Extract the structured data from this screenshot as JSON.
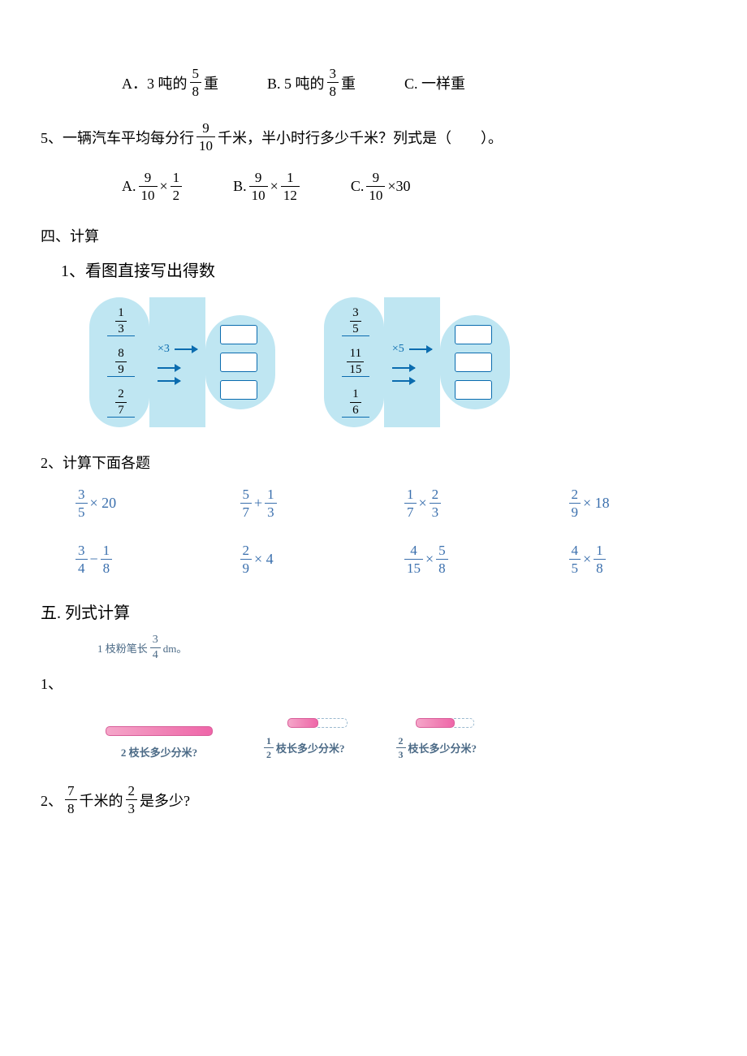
{
  "q_prev_opts": {
    "a_pre": "A．3 吨的",
    "a_frac_n": "5",
    "a_frac_d": "8",
    "a_post": "重",
    "b_pre": "B. 5 吨的",
    "b_frac_n": "3",
    "b_frac_d": "8",
    "b_post": "重",
    "c": "C. 一样重"
  },
  "q5": {
    "num": "5、",
    "text_a": "一辆汽车平均每分行",
    "frac_n": "9",
    "frac_d": "10",
    "text_b": "千米，半小时行多少千米？列式是（　　）。",
    "opts": {
      "a_lbl": "A. ",
      "a1_n": "9",
      "a1_d": "10",
      "a_op": "×",
      "a2_n": "1",
      "a2_d": "2",
      "b_lbl": "B. ",
      "b1_n": "9",
      "b1_d": "10",
      "b_op": "×",
      "b2_n": "1",
      "b2_d": "12",
      "c_lbl": "C. ",
      "c1_n": "9",
      "c1_d": "10",
      "c_op": "×30"
    }
  },
  "sec4": {
    "title": "四、计算",
    "sub1": "1、看图直接写出得数",
    "sub2": "2、计算下面各题"
  },
  "diagram": {
    "left": {
      "op": "×3",
      "f1_n": "1",
      "f1_d": "3",
      "f2_n": "8",
      "f2_d": "9",
      "f3_n": "2",
      "f3_d": "7"
    },
    "right": {
      "op": "×5",
      "f1_n": "3",
      "f1_d": "5",
      "f2_n": "11",
      "f2_d": "15",
      "f3_n": "1",
      "f3_d": "6"
    }
  },
  "calc2": [
    {
      "a_n": "3",
      "a_d": "5",
      "op": "× 20"
    },
    {
      "a_n": "5",
      "a_d": "7",
      "mid": "+",
      "b_n": "1",
      "b_d": "3"
    },
    {
      "a_n": "1",
      "a_d": "7",
      "mid": "×",
      "b_n": "2",
      "b_d": "3"
    },
    {
      "a_n": "2",
      "a_d": "9",
      "op": "× 18"
    },
    {
      "a_n": "3",
      "a_d": "4",
      "mid": "−",
      "b_n": "1",
      "b_d": "8"
    },
    {
      "a_n": "2",
      "a_d": "9",
      "op": "× 4"
    },
    {
      "a_n": "4",
      "a_d": "15",
      "mid": "×",
      "b_n": "5",
      "b_d": "8"
    },
    {
      "a_n": "4",
      "a_d": "5",
      "mid": "×",
      "b_n": "1",
      "b_d": "8"
    }
  ],
  "sec5": {
    "title": "五. 列式计算",
    "q1_num": "1、",
    "q1_intro_a": "1 枝粉笔长",
    "q1_intro_n": "3",
    "q1_intro_d": "4",
    "q1_intro_b": " dm。",
    "items": [
      {
        "pre": "2 ",
        "post": "枝长多少分米?",
        "chalk_w": 130,
        "dash_w": 0
      },
      {
        "frac_n": "1",
        "frac_d": "2",
        "post": "枝长多少分米?",
        "chalk_w": 36,
        "dash_w": 36
      },
      {
        "frac_n": "2",
        "frac_d": "3",
        "post": "枝长多少分米?",
        "chalk_w": 46,
        "dash_w": 24
      }
    ],
    "q2_num": "2、 ",
    "q2_a_n": "7",
    "q2_a_d": "8",
    "q2_mid": " 千米的",
    "q2_b_n": "2",
    "q2_b_d": "3",
    "q2_end": " 是多少?"
  },
  "style": {
    "diagram_bg": "#bfe6f2",
    "diagram_border": "#0b6caf",
    "calc_color": "#3a6fad",
    "chalk_color": "#f07fb4"
  }
}
